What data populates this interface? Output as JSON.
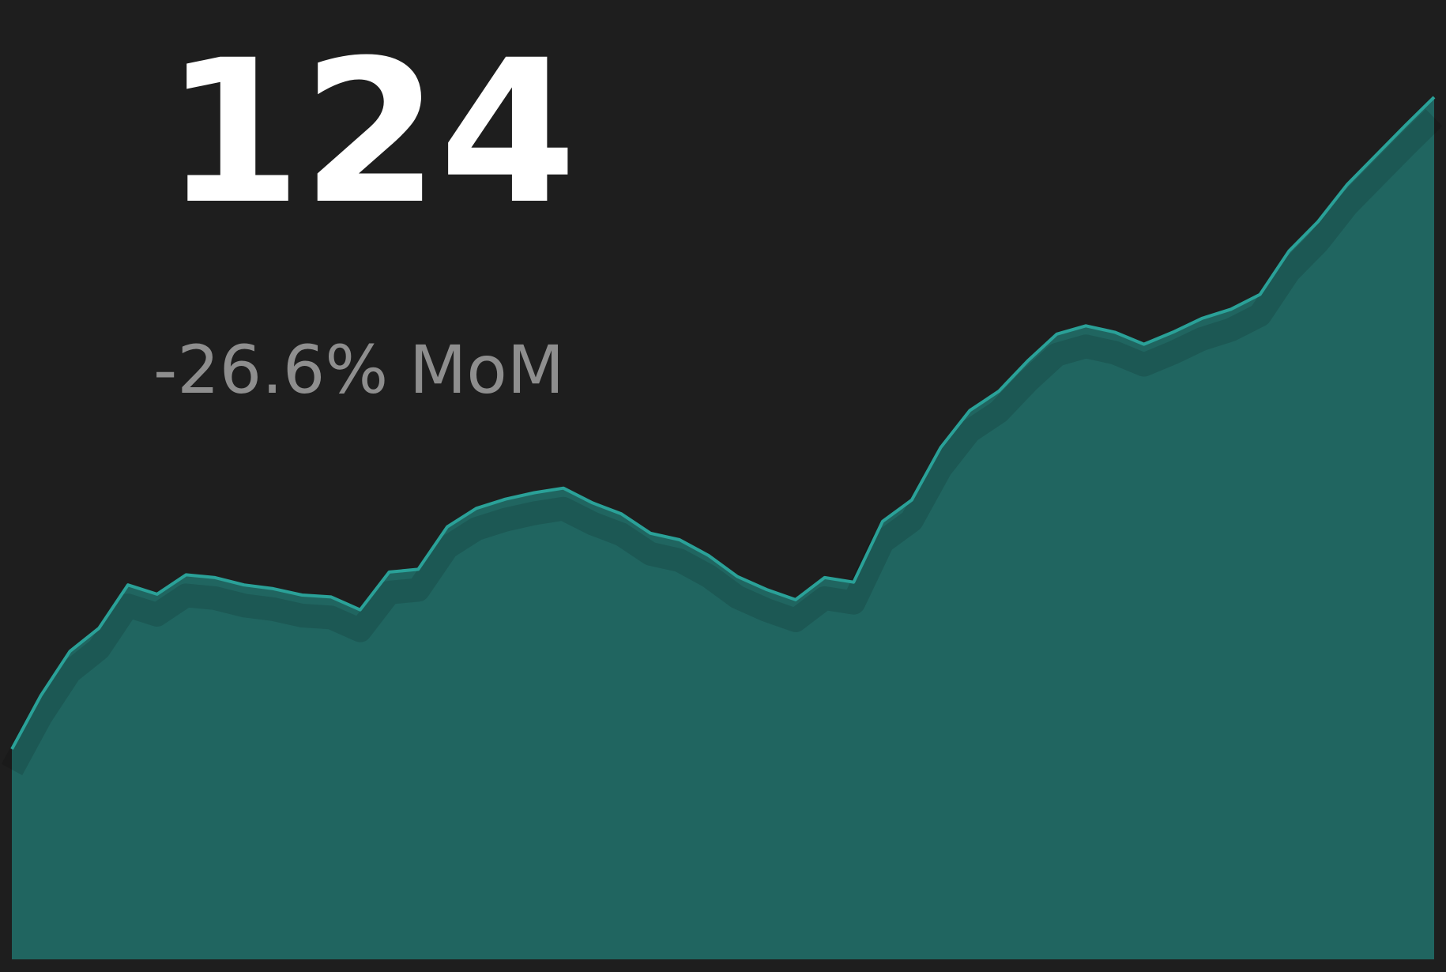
{
  "kpi": {
    "value": 124,
    "change": "-26.6% MoM"
  },
  "chart_data": {
    "type": "area",
    "color": "#2aa198",
    "fill": "#206560",
    "ylim": [
      0,
      100
    ],
    "values": [
      22.8,
      28.6,
      33.4,
      35.9,
      40.6,
      39.6,
      41.7,
      41.4,
      40.6,
      40.2,
      39.5,
      39.3,
      37.9,
      42.0,
      42.3,
      46.9,
      48.9,
      49.9,
      50.6,
      51.1,
      49.5,
      48.3,
      46.2,
      45.5,
      43.8,
      41.5,
      40.1,
      39.0,
      41.4,
      40.9,
      47.5,
      49.8,
      55.5,
      59.5,
      61.6,
      64.9,
      67.8,
      68.7,
      68.0,
      66.7,
      68.0,
      69.5,
      70.5,
      72.1,
      76.8,
      80.0,
      84.0,
      87.2,
      90.4,
      93.5
    ]
  }
}
